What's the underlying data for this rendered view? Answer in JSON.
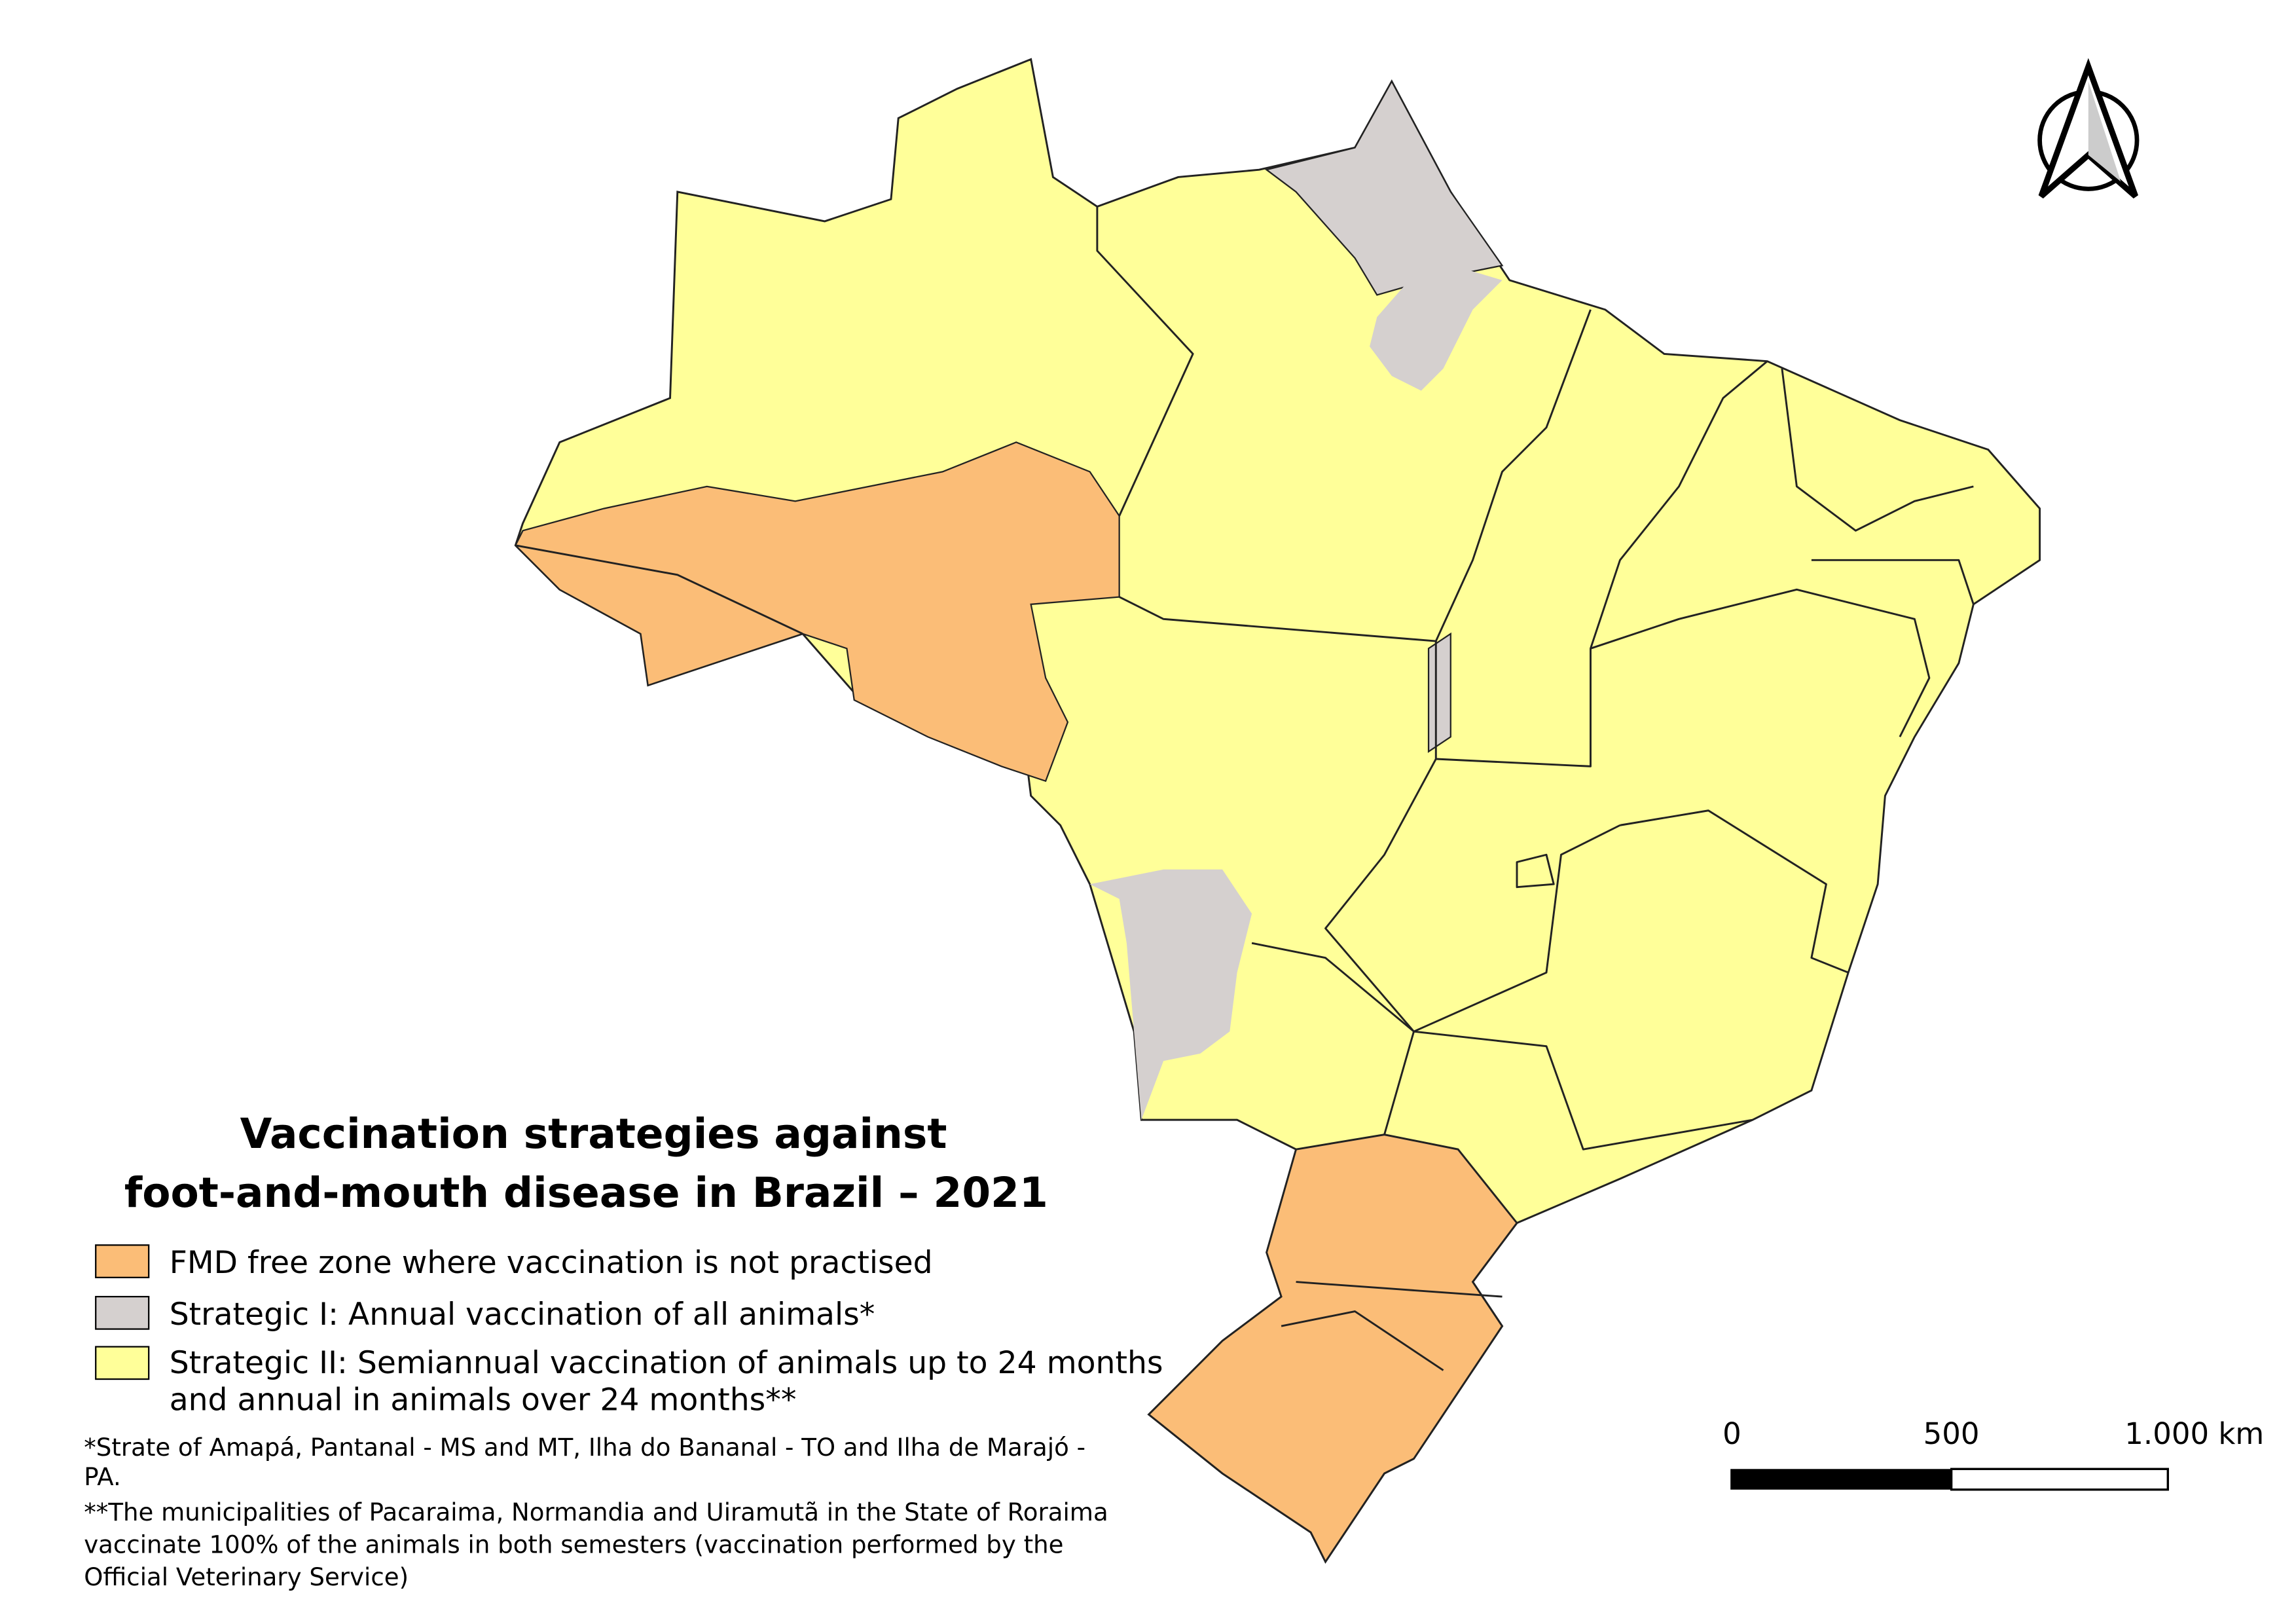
{
  "title": [
    "Vaccination strategies against",
    "foot-and-mouth disease in Brazil – 2021"
  ],
  "legend": [
    {
      "lines": [
        "FMD free zone where vaccination is not practised"
      ]
    },
    {
      "lines": [
        "Strategic I: Annual vaccination of all animals*"
      ]
    },
    {
      "lines": [
        "Strategic II: Semiannual vaccination of animals up to 24 months",
        "and annual in animals over 24 months**"
      ]
    }
  ],
  "notes": [
    {
      "lines": [
        "*Strate of Amapá, Pantanal - MS and MT, Ilha do Bananal - TO and Ilha de Marajó -",
        "PA."
      ]
    },
    {
      "lines": [
        "**The municipalities of Pacaraima, Normandia and Uiramutã in the State of Roraima",
        "vaccinate 100% of the animals in both semesters (vaccination performed by the",
        "Official Veterinary Service)"
      ]
    }
  ],
  "scale_bar": {
    "labels": [
      "0",
      "500",
      "1.000 km"
    ]
  }
}
